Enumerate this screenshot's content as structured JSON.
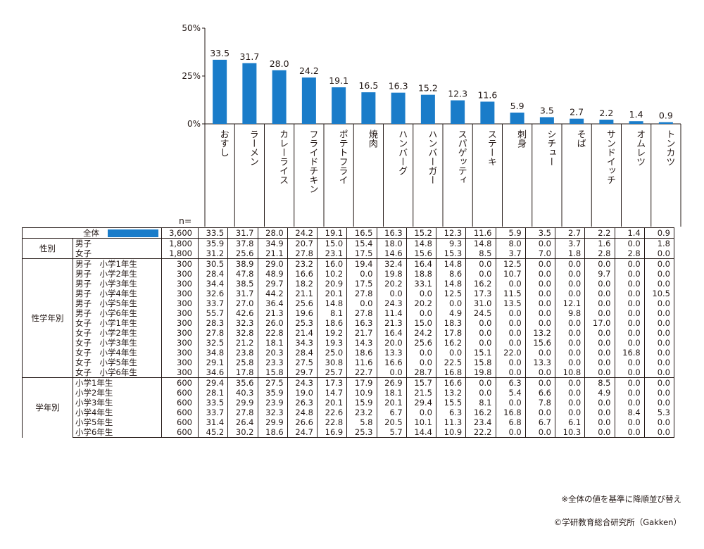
{
  "colors": {
    "bar": "#1a7cc9",
    "text": "#231815",
    "line": "#231815"
  },
  "chart_data": {
    "type": "bar",
    "categories": [
      "おすし",
      "ラーメン",
      "カレーライス",
      "フライドチキン",
      "ポテトフライ",
      "焼肉",
      "ハンバーグ",
      "ハンバーガー",
      "スパゲッティ",
      "ステーキ",
      "刺身",
      "シチュー",
      "そば",
      "サンドイッチ",
      "オムレツ",
      "トンカツ"
    ],
    "values": [
      33.5,
      31.7,
      28.0,
      24.2,
      19.1,
      16.5,
      16.3,
      15.2,
      12.3,
      11.6,
      5.9,
      3.5,
      2.7,
      2.2,
      1.4,
      0.9
    ],
    "value_labels": [
      "33.5",
      "31.7",
      "28.0",
      "24.2",
      "19.1",
      "16.5",
      "16.3",
      "15.2",
      "12.3",
      "11.6",
      "5.9",
      "3.5",
      "2.7",
      "2.2",
      "1.4",
      "0.9"
    ],
    "ylim": [
      0,
      50
    ],
    "yticks": [
      0,
      25,
      50
    ],
    "ytick_labels": [
      "0%",
      "25%",
      "50%"
    ],
    "xlabel": "",
    "ylabel": "",
    "title": ""
  },
  "table": {
    "n_label": "n=",
    "total": {
      "label": "全体",
      "n": "3,600",
      "values": [
        "33.5",
        "31.7",
        "28.0",
        "24.2",
        "19.1",
        "16.5",
        "16.3",
        "15.2",
        "12.3",
        "11.6",
        "5.9",
        "3.5",
        "2.7",
        "2.2",
        "1.4",
        "0.9"
      ]
    },
    "groups": [
      {
        "name": "性別",
        "rows": [
          {
            "label": "男子",
            "n": "1,800",
            "values": [
              "35.9",
              "37.8",
              "34.9",
              "20.7",
              "15.0",
              "15.4",
              "18.0",
              "14.8",
              "9.3",
              "14.8",
              "8.0",
              "0.0",
              "3.7",
              "1.6",
              "0.0",
              "1.8"
            ]
          },
          {
            "label": "女子",
            "n": "1,800",
            "values": [
              "31.2",
              "25.6",
              "21.1",
              "27.8",
              "23.1",
              "17.5",
              "14.6",
              "15.6",
              "15.3",
              "8.5",
              "3.7",
              "7.0",
              "1.8",
              "2.8",
              "2.8",
              "0.0"
            ]
          }
        ]
      },
      {
        "name": "性学年別",
        "rows": [
          {
            "label": "男子　小学1年生",
            "n": "300",
            "values": [
              "30.5",
              "38.9",
              "29.0",
              "23.2",
              "16.0",
              "19.4",
              "32.4",
              "16.4",
              "14.8",
              "0.0",
              "12.5",
              "0.0",
              "0.0",
              "0.0",
              "0.0",
              "0.0"
            ]
          },
          {
            "label": "男子　小学2年生",
            "n": "300",
            "values": [
              "28.4",
              "47.8",
              "48.9",
              "16.6",
              "10.2",
              "0.0",
              "19.8",
              "18.8",
              "8.6",
              "0.0",
              "10.7",
              "0.0",
              "0.0",
              "9.7",
              "0.0",
              "0.0"
            ]
          },
          {
            "label": "男子　小学3年生",
            "n": "300",
            "values": [
              "34.4",
              "38.5",
              "29.7",
              "18.2",
              "20.9",
              "17.5",
              "20.2",
              "33.1",
              "14.8",
              "16.2",
              "0.0",
              "0.0",
              "0.0",
              "0.0",
              "0.0",
              "0.0"
            ]
          },
          {
            "label": "男子　小学4年生",
            "n": "300",
            "values": [
              "32.6",
              "31.7",
              "44.2",
              "21.1",
              "20.1",
              "27.8",
              "0.0",
              "0.0",
              "12.5",
              "17.3",
              "11.5",
              "0.0",
              "0.0",
              "0.0",
              "0.0",
              "10.5"
            ]
          },
          {
            "label": "男子　小学5年生",
            "n": "300",
            "values": [
              "33.7",
              "27.0",
              "36.4",
              "25.6",
              "14.8",
              "0.0",
              "24.3",
              "20.2",
              "0.0",
              "31.0",
              "13.5",
              "0.0",
              "12.1",
              "0.0",
              "0.0",
              "0.0"
            ]
          },
          {
            "label": "男子　小学6年生",
            "n": "300",
            "values": [
              "55.7",
              "42.6",
              "21.3",
              "19.6",
              "8.1",
              "27.8",
              "11.4",
              "0.0",
              "4.9",
              "24.5",
              "0.0",
              "0.0",
              "9.8",
              "0.0",
              "0.0",
              "0.0"
            ]
          },
          {
            "label": "女子　小学1年生",
            "n": "300",
            "values": [
              "28.3",
              "32.3",
              "26.0",
              "25.3",
              "18.6",
              "16.3",
              "21.3",
              "15.0",
              "18.3",
              "0.0",
              "0.0",
              "0.0",
              "0.0",
              "17.0",
              "0.0",
              "0.0"
            ]
          },
          {
            "label": "女子　小学2年生",
            "n": "300",
            "values": [
              "27.8",
              "32.8",
              "22.8",
              "21.4",
              "19.2",
              "21.7",
              "16.4",
              "24.2",
              "17.8",
              "0.0",
              "0.0",
              "13.2",
              "0.0",
              "0.0",
              "0.0",
              "0.0"
            ]
          },
          {
            "label": "女子　小学3年生",
            "n": "300",
            "values": [
              "32.5",
              "21.2",
              "18.1",
              "34.3",
              "19.3",
              "14.3",
              "20.0",
              "25.6",
              "16.2",
              "0.0",
              "0.0",
              "15.6",
              "0.0",
              "0.0",
              "0.0",
              "0.0"
            ]
          },
          {
            "label": "女子　小学4年生",
            "n": "300",
            "values": [
              "34.8",
              "23.8",
              "20.3",
              "28.4",
              "25.0",
              "18.6",
              "13.3",
              "0.0",
              "0.0",
              "15.1",
              "22.0",
              "0.0",
              "0.0",
              "0.0",
              "16.8",
              "0.0"
            ]
          },
          {
            "label": "女子　小学5年生",
            "n": "300",
            "values": [
              "29.1",
              "25.8",
              "23.3",
              "27.5",
              "30.8",
              "11.6",
              "16.6",
              "0.0",
              "22.5",
              "15.8",
              "0.0",
              "13.3",
              "0.0",
              "0.0",
              "0.0",
              "0.0"
            ]
          },
          {
            "label": "女子　小学6年生",
            "n": "300",
            "values": [
              "34.6",
              "17.8",
              "15.8",
              "29.7",
              "25.7",
              "22.7",
              "0.0",
              "28.7",
              "16.8",
              "19.8",
              "0.0",
              "0.0",
              "10.8",
              "0.0",
              "0.0",
              "0.0"
            ]
          }
        ]
      },
      {
        "name": "学年別",
        "rows": [
          {
            "label": "小学1年生",
            "n": "600",
            "values": [
              "29.4",
              "35.6",
              "27.5",
              "24.3",
              "17.3",
              "17.9",
              "26.9",
              "15.7",
              "16.6",
              "0.0",
              "6.3",
              "0.0",
              "0.0",
              "8.5",
              "0.0",
              "0.0"
            ]
          },
          {
            "label": "小学2年生",
            "n": "600",
            "values": [
              "28.1",
              "40.3",
              "35.9",
              "19.0",
              "14.7",
              "10.9",
              "18.1",
              "21.5",
              "13.2",
              "0.0",
              "5.4",
              "6.6",
              "0.0",
              "4.9",
              "0.0",
              "0.0"
            ]
          },
          {
            "label": "小学3年生",
            "n": "600",
            "values": [
              "33.5",
              "29.9",
              "23.9",
              "26.3",
              "20.1",
              "15.9",
              "20.1",
              "29.4",
              "15.5",
              "8.1",
              "0.0",
              "7.8",
              "0.0",
              "0.0",
              "0.0",
              "0.0"
            ]
          },
          {
            "label": "小学4年生",
            "n": "600",
            "values": [
              "33.7",
              "27.8",
              "32.3",
              "24.8",
              "22.6",
              "23.2",
              "6.7",
              "0.0",
              "6.3",
              "16.2",
              "16.8",
              "0.0",
              "0.0",
              "0.0",
              "8.4",
              "5.3"
            ]
          },
          {
            "label": "小学5年生",
            "n": "600",
            "values": [
              "31.4",
              "26.4",
              "29.9",
              "26.6",
              "22.8",
              "5.8",
              "20.5",
              "10.1",
              "11.3",
              "23.4",
              "6.8",
              "6.7",
              "6.1",
              "0.0",
              "0.0",
              "0.0"
            ]
          },
          {
            "label": "小学6年生",
            "n": "600",
            "values": [
              "45.2",
              "30.2",
              "18.6",
              "24.7",
              "16.9",
              "25.3",
              "5.7",
              "14.4",
              "10.9",
              "22.2",
              "0.0",
              "0.0",
              "10.3",
              "0.0",
              "0.0",
              "0.0"
            ]
          }
        ]
      }
    ]
  },
  "notes": {
    "sort_note": "※全体の値を基準に降順並び替え",
    "copyright": "©学研教育総合研究所（Gakken）"
  }
}
